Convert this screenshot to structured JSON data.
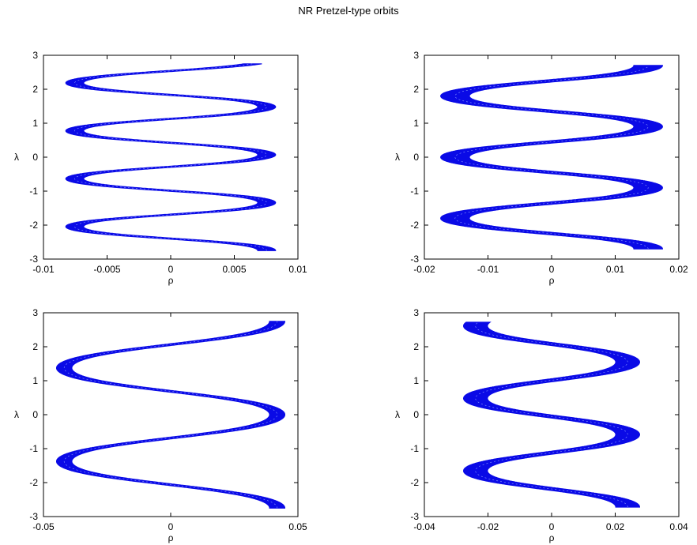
{
  "figure": {
    "title": "NR Pretzel-type orbits"
  },
  "colors": {
    "orbit": "#0a0ae6",
    "axis": "#000000",
    "background": "#ffffff"
  },
  "chart_data": [
    {
      "type": "line",
      "xlabel": "ρ",
      "ylabel": "λ",
      "xlim": [
        -0.01,
        0.01
      ],
      "ylim": [
        -3,
        3
      ],
      "xticks": [
        -0.01,
        -0.005,
        0,
        0.005,
        0.01
      ],
      "xtick_labels": [
        "-0.01",
        "-0.005",
        "0",
        "0.005",
        "0.01"
      ],
      "yticks": [
        -3,
        -2,
        -1,
        0,
        1,
        2,
        3
      ],
      "ytick_labels": [
        "-3",
        "-2",
        "-1",
        "0",
        "1",
        "2",
        "3"
      ],
      "grid": false,
      "series": [
        {
          "amplitude": 0.0082,
          "cycles": 3.9,
          "band_width": 0.0014,
          "lambda_range": [
            -2.75,
            2.75
          ]
        }
      ]
    },
    {
      "type": "line",
      "xlabel": "ρ",
      "ylabel": "λ",
      "xlim": [
        -0.02,
        0.02
      ],
      "ylim": [
        -3,
        3
      ],
      "xticks": [
        -0.02,
        -0.01,
        0,
        0.01,
        0.02
      ],
      "xtick_labels": [
        "-0.02",
        "-0.01",
        "0",
        "0.01",
        "0.02"
      ],
      "yticks": [
        -3,
        -2,
        -1,
        0,
        1,
        2,
        3
      ],
      "ytick_labels": [
        "-3",
        "-2",
        "-1",
        "0",
        "1",
        "2",
        "3"
      ],
      "grid": false,
      "series": [
        {
          "amplitude": 0.0165,
          "cycles": 3.0,
          "band_width": 0.0045,
          "lambda_range": [
            -2.7,
            2.7
          ]
        }
      ]
    },
    {
      "type": "line",
      "xlabel": "ρ",
      "ylabel": "λ",
      "xlim": [
        -0.05,
        0.05
      ],
      "ylim": [
        -3,
        3
      ],
      "xticks": [
        -0.05,
        0,
        0.05
      ],
      "xtick_labels": [
        "-0.05",
        "0",
        "0.05"
      ],
      "yticks": [
        -3,
        -2,
        -1,
        0,
        1,
        2,
        3
      ],
      "ytick_labels": [
        "-3",
        "-2",
        "-1",
        "0",
        "1",
        "2",
        "3"
      ],
      "grid": false,
      "series": [
        {
          "amplitude": 0.0455,
          "cycles": 2.0,
          "band_width": 0.006,
          "lambda_range": [
            -2.75,
            2.75
          ]
        }
      ]
    },
    {
      "type": "line",
      "xlabel": "ρ",
      "ylabel": "λ",
      "xlim": [
        -0.04,
        0.04
      ],
      "ylim": [
        -3,
        3
      ],
      "xticks": [
        -0.04,
        -0.02,
        0,
        0.02,
        0.04
      ],
      "xtick_labels": [
        "-0.04",
        "-0.02",
        "0",
        "0.02",
        "0.04"
      ],
      "yticks": [
        -3,
        -2,
        -1,
        0,
        1,
        2,
        3
      ],
      "ytick_labels": [
        "-3",
        "-2",
        "-1",
        "0",
        "1",
        "2",
        "3"
      ],
      "grid": false,
      "series": [
        {
          "amplitude": 0.026,
          "cycles": 2.55,
          "band_width": 0.0075,
          "lambda_range": [
            -2.72,
            2.72
          ]
        }
      ]
    }
  ]
}
